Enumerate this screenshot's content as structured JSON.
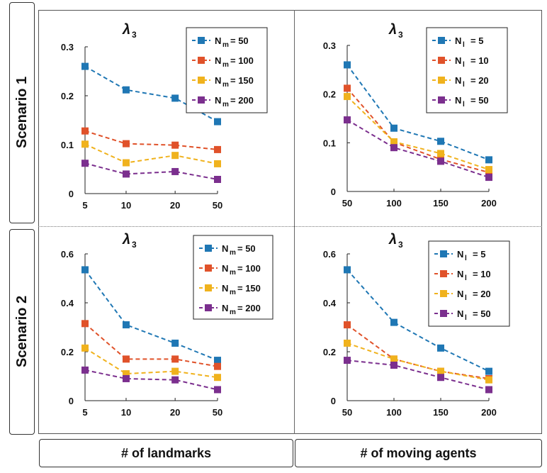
{
  "row_labels": [
    "Scenario 1",
    "Scenario 2"
  ],
  "col_labels": [
    "# of landmarks",
    "# of moving agents"
  ],
  "colors": [
    "#1f77b4",
    "#e0522a",
    "#f0b21d",
    "#7b2f8e"
  ],
  "chart_data": [
    {
      "type": "line",
      "title": "λ3",
      "title_sub": "3",
      "title_main": "λ",
      "xlabel": "# of landmarks",
      "categories": [
        "5",
        "10",
        "20",
        "50"
      ],
      "ylim": [
        0,
        0.3
      ],
      "yticks": [
        "0",
        "0.1",
        "0.2",
        "0.3"
      ],
      "legend_sym": "N",
      "legend_sub": "m",
      "series": [
        {
          "name": "= 50",
          "values": [
            0.26,
            0.212,
            0.195,
            0.147
          ]
        },
        {
          "name": "= 100",
          "values": [
            0.128,
            0.102,
            0.099,
            0.09
          ]
        },
        {
          "name": "= 150",
          "values": [
            0.101,
            0.063,
            0.078,
            0.061
          ]
        },
        {
          "name": "= 200",
          "values": [
            0.062,
            0.04,
            0.045,
            0.029
          ]
        }
      ]
    },
    {
      "type": "line",
      "title": "λ3",
      "title_sub": "3",
      "title_main": "λ",
      "xlabel": "# of moving agents",
      "categories": [
        "50",
        "100",
        "150",
        "200"
      ],
      "ylim": [
        0,
        0.3
      ],
      "yticks": [
        "0",
        "0.1",
        "0.2",
        "0.3"
      ],
      "legend_sym": "N",
      "legend_sub": "l",
      "series": [
        {
          "name": "= 5",
          "values": [
            0.26,
            0.13,
            0.103,
            0.065
          ]
        },
        {
          "name": "= 10",
          "values": [
            0.212,
            0.101,
            0.066,
            0.039
          ]
        },
        {
          "name": "= 20",
          "values": [
            0.195,
            0.102,
            0.078,
            0.045
          ]
        },
        {
          "name": "= 50",
          "values": [
            0.147,
            0.09,
            0.062,
            0.029
          ]
        }
      ]
    },
    {
      "type": "line",
      "title": "λ3",
      "title_sub": "3",
      "title_main": "λ",
      "xlabel": "# of landmarks",
      "categories": [
        "5",
        "10",
        "20",
        "50"
      ],
      "ylim": [
        0,
        0.6
      ],
      "yticks": [
        "0",
        "0.2",
        "0.4",
        "0.6"
      ],
      "legend_sym": "N",
      "legend_sub": "m",
      "series": [
        {
          "name": "= 50",
          "values": [
            0.535,
            0.31,
            0.235,
            0.165
          ]
        },
        {
          "name": "= 100",
          "values": [
            0.315,
            0.17,
            0.17,
            0.14
          ]
        },
        {
          "name": "= 150",
          "values": [
            0.215,
            0.11,
            0.12,
            0.095
          ]
        },
        {
          "name": "= 200",
          "values": [
            0.125,
            0.09,
            0.085,
            0.045
          ]
        }
      ]
    },
    {
      "type": "line",
      "title": "λ3",
      "title_sub": "3",
      "title_main": "λ",
      "xlabel": "# of moving agents",
      "categories": [
        "50",
        "100",
        "150",
        "200"
      ],
      "ylim": [
        0,
        0.6
      ],
      "yticks": [
        "0",
        "0.2",
        "0.4",
        "0.6"
      ],
      "legend_sym": "N",
      "legend_sub": "l",
      "series": [
        {
          "name": "= 5",
          "values": [
            0.535,
            0.32,
            0.215,
            0.12
          ]
        },
        {
          "name": "= 10",
          "values": [
            0.31,
            0.17,
            0.12,
            0.09
          ]
        },
        {
          "name": "= 20",
          "values": [
            0.235,
            0.17,
            0.12,
            0.085
          ]
        },
        {
          "name": "= 50",
          "values": [
            0.165,
            0.145,
            0.095,
            0.045
          ]
        }
      ]
    }
  ]
}
